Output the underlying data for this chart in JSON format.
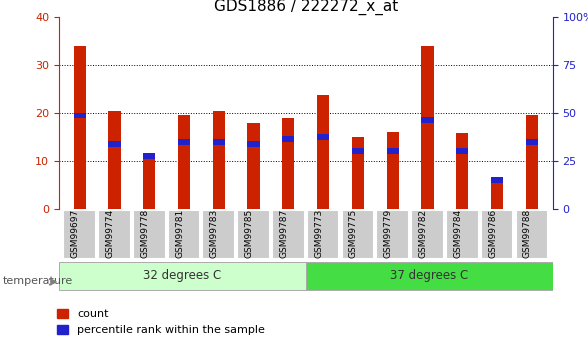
{
  "title": "GDS1886 / 222272_x_at",
  "samples": [
    "GSM99697",
    "GSM99774",
    "GSM99778",
    "GSM99781",
    "GSM99783",
    "GSM99785",
    "GSM99787",
    "GSM99773",
    "GSM99775",
    "GSM99779",
    "GSM99782",
    "GSM99784",
    "GSM99786",
    "GSM99788"
  ],
  "count_values": [
    34.0,
    20.5,
    11.7,
    19.5,
    20.5,
    18.0,
    19.0,
    23.7,
    15.0,
    16.0,
    34.0,
    15.8,
    5.5,
    19.5
  ],
  "percentile_values": [
    19.5,
    13.5,
    11.0,
    14.0,
    14.0,
    13.5,
    14.5,
    15.0,
    12.0,
    12.0,
    18.5,
    12.0,
    6.0,
    14.0
  ],
  "blue_bar_height": 1.2,
  "group1_label": "32 degrees C",
  "group2_label": "37 degrees C",
  "group1_count": 7,
  "group2_count": 7,
  "temperature_label": "temperature",
  "ylim_left": [
    0,
    40
  ],
  "ylim_right": [
    0,
    100
  ],
  "yticks_left": [
    0,
    10,
    20,
    30,
    40
  ],
  "yticks_right": [
    0,
    25,
    50,
    75,
    100
  ],
  "ytick_labels_right": [
    "0",
    "25",
    "50",
    "75",
    "100%"
  ],
  "bar_color_red": "#CC2200",
  "bar_color_blue": "#2222CC",
  "group1_bg": "#CCFFCC",
  "group2_bg": "#44DD44",
  "tick_bg": "#CCCCCC",
  "legend_count_label": "count",
  "legend_percentile_label": "percentile rank within the sample",
  "title_fontsize": 11,
  "axis_label_color_left": "#CC2200",
  "axis_label_color_right": "#2222CC",
  "bar_width": 0.35
}
